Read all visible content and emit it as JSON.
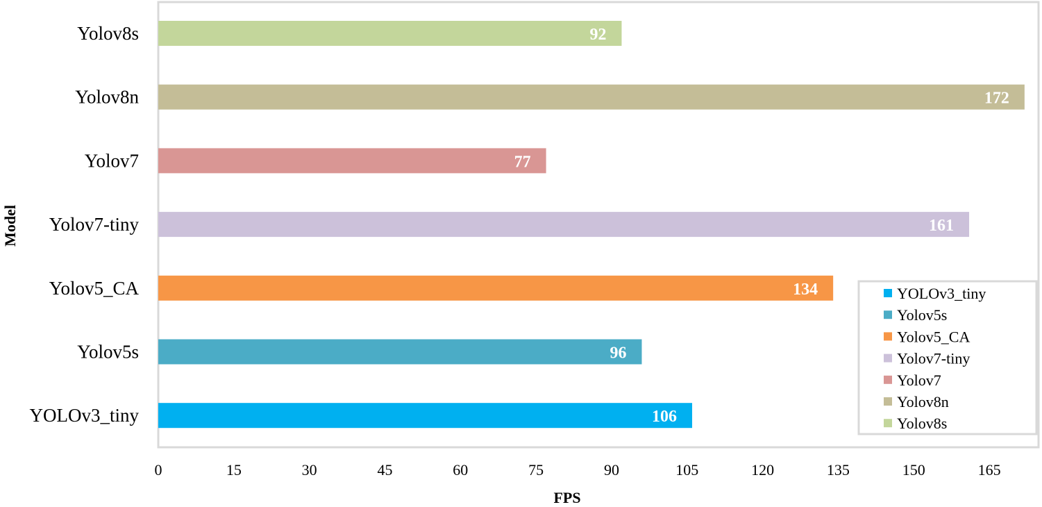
{
  "chart_data": {
    "type": "bar",
    "orientation": "horizontal",
    "title": "",
    "xlabel": "FPS",
    "ylabel": "Model",
    "xlim": [
      0,
      174
    ],
    "x_ticks": [
      0,
      15,
      30,
      45,
      60,
      75,
      90,
      105,
      120,
      135,
      150,
      165
    ],
    "grid": false,
    "legend_position": "bottom-right",
    "categories": [
      "YOLOv3_tiny",
      "Yolov5s",
      "Yolov5_CA",
      "Yolov7-tiny",
      "Yolov7",
      "Yolov8n",
      "Yolov8s"
    ],
    "values": [
      106,
      96,
      134,
      161,
      77,
      172,
      92
    ],
    "colors": [
      "#00b0f0",
      "#4bacc6",
      "#f79646",
      "#ccc1da",
      "#d99694",
      "#c4bd97",
      "#c3d69b"
    ],
    "data_labels": [
      "106",
      "96",
      "134",
      "161",
      "77",
      "172",
      "92"
    ],
    "legend": [
      "YOLOv3_tiny",
      "Yolov5s",
      "Yolov5_CA",
      "Yolov7-tiny",
      "Yolov7",
      "Yolov8n",
      "Yolov8s"
    ]
  },
  "colors": {
    "frame": "#d9d9d9",
    "axis": "#d9d9d9",
    "data_label_text": "#ffffff"
  }
}
